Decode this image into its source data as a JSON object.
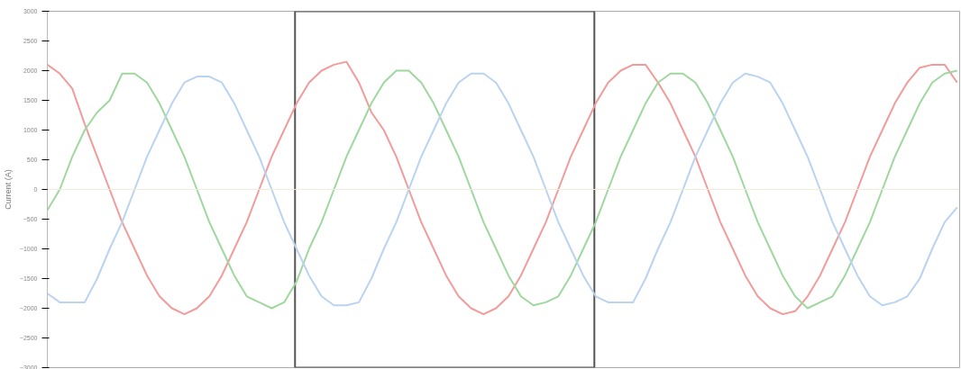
{
  "chart_data": {
    "type": "line",
    "ylabel": "Current (A)",
    "categories": [
      null,
      null,
      null,
      null,
      null,
      null,
      null,
      null,
      null,
      null,
      null,
      null,
      null,
      null,
      null,
      null,
      null,
      null,
      null,
      null,
      null,
      null,
      null,
      null,
      null,
      null,
      null,
      null,
      null,
      null,
      null,
      null,
      null,
      null,
      null,
      null,
      null,
      null,
      null,
      null,
      null,
      null,
      null,
      null,
      null,
      null,
      null,
      null,
      null,
      null,
      null,
      null,
      null,
      null,
      null,
      null,
      null,
      null,
      null,
      null,
      null,
      null,
      null,
      null,
      null,
      null,
      null,
      null,
      null,
      null,
      null,
      null,
      null,
      null
    ],
    "series": [
      {
        "color": "#f29b9b",
        "values": [
          2100,
          1950,
          1700,
          1100,
          550,
          0,
          -550,
          -1000,
          -1450,
          -1800,
          -2000,
          -2100,
          -2000,
          -1800,
          -1450,
          -1000,
          -550,
          0,
          550,
          1000,
          1450,
          1800,
          2000,
          2100,
          2150,
          1800,
          1300,
          1000,
          550,
          0,
          -550,
          -1000,
          -1450,
          -1800,
          -2000,
          -2100,
          -2000,
          -1800,
          -1450,
          -1000,
          -550,
          0,
          550,
          1000,
          1450,
          1800,
          2000,
          2100,
          2100,
          1800,
          1450,
          1000,
          550,
          0,
          -550,
          -1000,
          -1450,
          -1800,
          -2000,
          -2100,
          -2050,
          -1800,
          -1450,
          -1000,
          -550,
          0,
          550,
          1000,
          1450,
          1800,
          2050,
          2100,
          2100,
          1800
        ]
      },
      {
        "color": "#9fd89f",
        "values": [
          -350,
          0,
          550,
          1000,
          1300,
          1500,
          1950,
          1950,
          1800,
          1450,
          1000,
          550,
          0,
          -550,
          -1000,
          -1450,
          -1800,
          -1900,
          -2000,
          -1900,
          -1550,
          -1000,
          -550,
          0,
          550,
          1000,
          1450,
          1800,
          2000,
          2000,
          1800,
          1450,
          1000,
          550,
          0,
          -550,
          -1000,
          -1450,
          -1800,
          -1950,
          -1900,
          -1800,
          -1450,
          -1000,
          -550,
          0,
          550,
          1000,
          1450,
          1800,
          1950,
          1950,
          1800,
          1450,
          1000,
          550,
          0,
          -550,
          -1000,
          -1450,
          -1800,
          -2000,
          -1900,
          -1800,
          -1450,
          -1000,
          -550,
          0,
          550,
          1000,
          1450,
          1800,
          1950,
          2000
        ]
      },
      {
        "color": "#b9d3f0",
        "values": [
          -1750,
          -1900,
          -1900,
          -1900,
          -1500,
          -1000,
          -550,
          0,
          550,
          1000,
          1450,
          1800,
          1900,
          1900,
          1800,
          1450,
          1000,
          550,
          0,
          -550,
          -1000,
          -1450,
          -1800,
          -1950,
          -1950,
          -1900,
          -1500,
          -1000,
          -550,
          0,
          550,
          1000,
          1450,
          1800,
          1950,
          1950,
          1800,
          1450,
          1000,
          550,
          0,
          -550,
          -1000,
          -1450,
          -1800,
          -1900,
          -1900,
          -1900,
          -1500,
          -1000,
          -550,
          0,
          550,
          1000,
          1450,
          1800,
          1950,
          1900,
          1800,
          1450,
          1000,
          550,
          0,
          -550,
          -1000,
          -1450,
          -1800,
          -1950,
          -1900,
          -1800,
          -1500,
          -1000,
          -550,
          -300
        ]
      }
    ],
    "ylim": [
      -3000,
      3000
    ],
    "yticks": [
      -3000,
      -2500,
      -2000,
      -1500,
      -1000,
      -500,
      0,
      500,
      1000,
      1500,
      2000,
      2500,
      3000
    ],
    "ref_lines": [
      {
        "axis": "y",
        "value": 0,
        "color": "#f3ead8"
      }
    ],
    "tick_labels": "y",
    "grid": false
  }
}
